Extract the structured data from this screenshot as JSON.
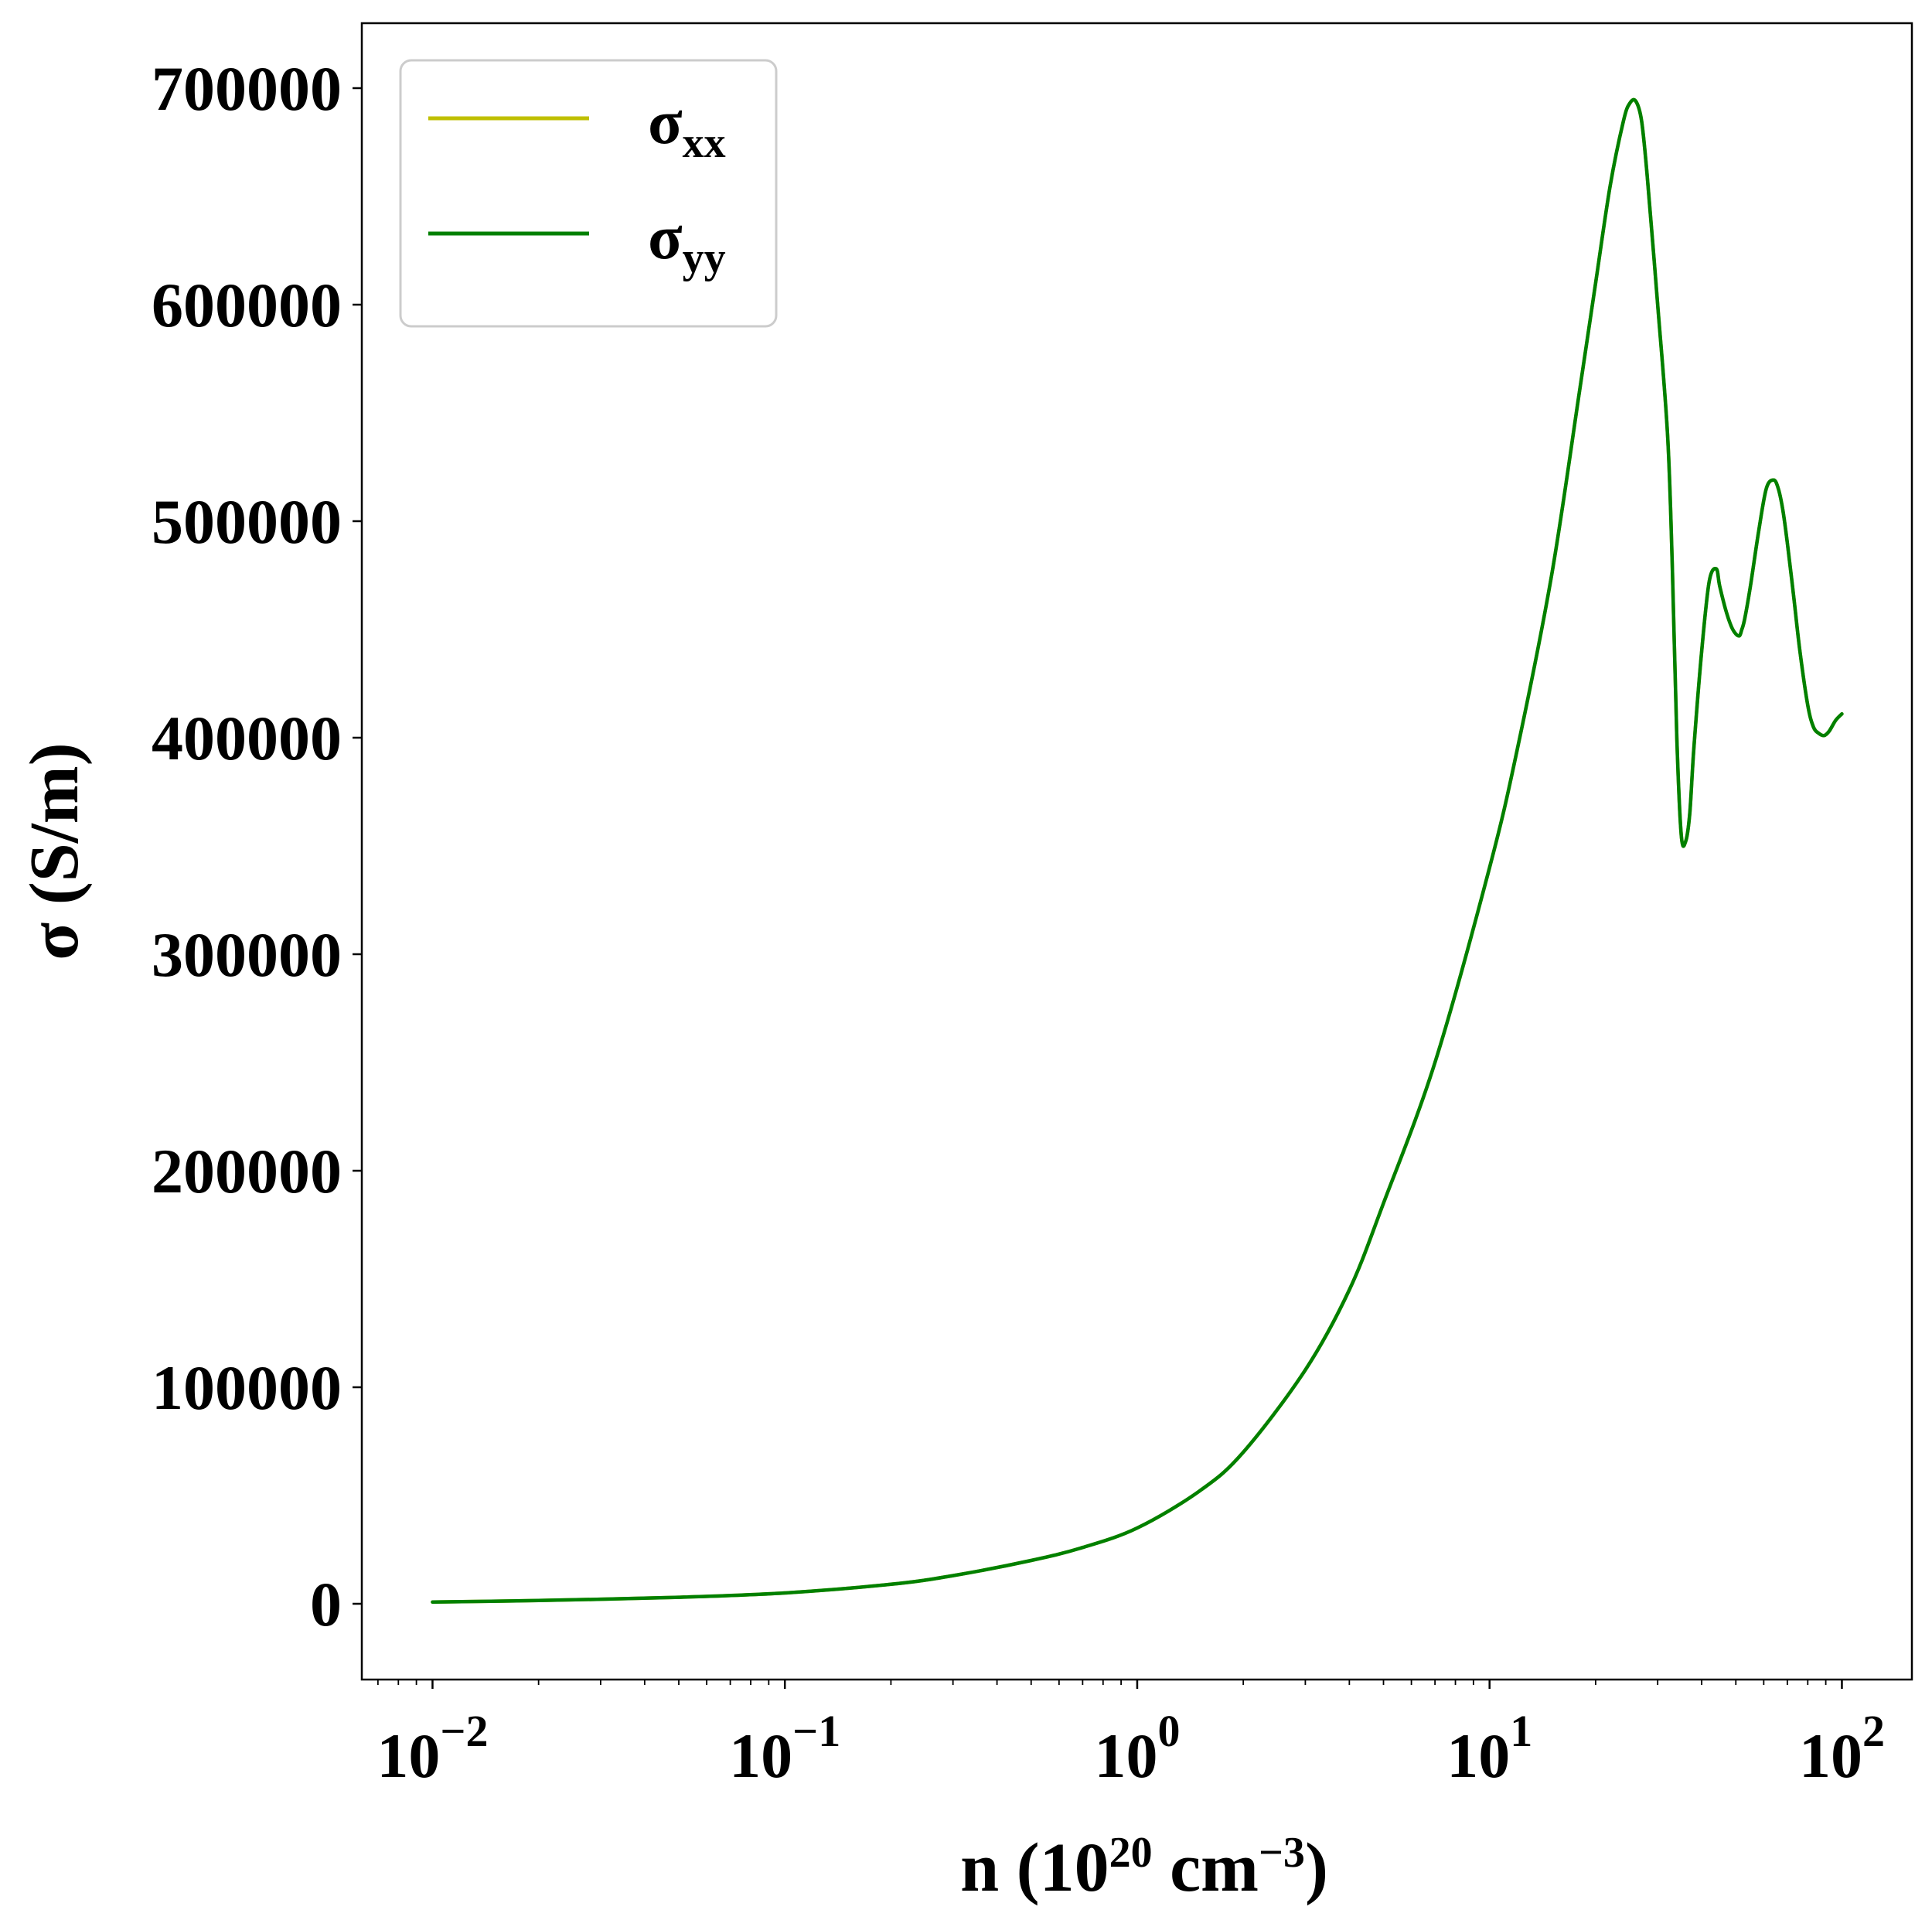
{
  "chart_data": {
    "type": "line",
    "title": "",
    "xlabel": "n (10^20 cm^-3)",
    "xlabel_parts": {
      "prefix": "n (10",
      "exp1": "20",
      "middle": " cm",
      "exp2": "−3",
      "suffix": ")"
    },
    "ylabel": "σ (S/m)",
    "x_scale": "log",
    "xlim": [
      0.0063,
      158
    ],
    "ylim": [
      -35000,
      730000
    ],
    "x_ticks": [
      {
        "value": 0.01,
        "base": "10",
        "exp": "−2"
      },
      {
        "value": 0.1,
        "base": "10",
        "exp": "−1"
      },
      {
        "value": 1,
        "base": "10",
        "exp": "0"
      },
      {
        "value": 10,
        "base": "10",
        "exp": "1"
      },
      {
        "value": 100,
        "base": "10",
        "exp": "2"
      }
    ],
    "y_ticks": [
      {
        "value": 0,
        "label": "0"
      },
      {
        "value": 100000,
        "label": "100000"
      },
      {
        "value": 200000,
        "label": "200000"
      },
      {
        "value": 300000,
        "label": "300000"
      },
      {
        "value": 400000,
        "label": "400000"
      },
      {
        "value": 500000,
        "label": "500000"
      },
      {
        "value": 600000,
        "label": "600000"
      },
      {
        "value": 700000,
        "label": "700000"
      }
    ],
    "grid": false,
    "legend_position": "top-left",
    "series": [
      {
        "name": "σxx",
        "name_base": "σ",
        "name_sub": "xx",
        "color": "#bfbf00",
        "x": [
          0.01,
          0.02,
          0.05,
          0.1,
          0.2,
          0.3,
          0.5,
          0.7,
          1.0,
          1.5,
          2.0,
          3.0,
          4.0,
          5.0,
          7.0,
          10.0,
          12.0,
          15.0,
          18.0,
          20.0,
          22.0,
          24.0,
          25.0,
          26.0,
          27.0,
          28.0,
          30.0,
          32.0,
          33.0,
          34.0,
          35.0,
          36.0,
          37.0,
          38.0,
          40.0,
          42.0,
          44.0,
          45.0,
          47.0,
          49.0,
          51.0,
          52.0,
          53.0,
          55.0,
          58.0,
          61.0,
          64.0,
          66.0,
          68.0,
          70.0,
          73.0,
          76.0,
          80.0,
          83.0,
          86.0,
          89.0,
          92.0,
          96.0,
          100.0
        ],
        "y": [
          800,
          1500,
          3000,
          5000,
          9000,
          13000,
          20000,
          26000,
          35000,
          52000,
          70000,
          108000,
          145000,
          185000,
          250000,
          340000,
          395000,
          475000,
          560000,
          610000,
          655000,
          685000,
          693000,
          694000,
          685000,
          660000,
          600000,
          540000,
          480000,
          400000,
          355000,
          352000,
          365000,
          395000,
          440000,
          472000,
          478000,
          470000,
          458000,
          450000,
          447000,
          450000,
          455000,
          470000,
          495000,
          515000,
          519000,
          515000,
          505000,
          490000,
          465000,
          440000,
          415000,
          405000,
          402000,
          401000,
          403000,
          408000,
          411000
        ]
      },
      {
        "name": "σyy",
        "name_base": "σ",
        "name_sub": "yy",
        "color": "#008000",
        "x": [
          0.01,
          0.02,
          0.05,
          0.1,
          0.2,
          0.3,
          0.5,
          0.7,
          1.0,
          1.5,
          2.0,
          3.0,
          4.0,
          5.0,
          7.0,
          10.0,
          12.0,
          15.0,
          18.0,
          20.0,
          22.0,
          24.0,
          25.0,
          26.0,
          27.0,
          28.0,
          30.0,
          32.0,
          33.0,
          34.0,
          35.0,
          36.0,
          37.0,
          38.0,
          40.0,
          42.0,
          44.0,
          45.0,
          47.0,
          49.0,
          51.0,
          52.0,
          53.0,
          55.0,
          58.0,
          61.0,
          64.0,
          66.0,
          68.0,
          70.0,
          73.0,
          76.0,
          80.0,
          83.0,
          86.0,
          89.0,
          92.0,
          96.0,
          100.0
        ],
        "y": [
          800,
          1500,
          3000,
          5000,
          9000,
          13000,
          20000,
          26000,
          35000,
          52000,
          70000,
          108000,
          145000,
          185000,
          250000,
          340000,
          395000,
          475000,
          560000,
          610000,
          655000,
          685000,
          693000,
          694000,
          685000,
          660000,
          600000,
          540000,
          480000,
          400000,
          355000,
          352000,
          365000,
          395000,
          440000,
          472000,
          478000,
          470000,
          458000,
          450000,
          447000,
          450000,
          455000,
          470000,
          495000,
          515000,
          519000,
          515000,
          505000,
          490000,
          465000,
          440000,
          415000,
          405000,
          402000,
          401000,
          403000,
          408000,
          411000
        ]
      }
    ]
  }
}
